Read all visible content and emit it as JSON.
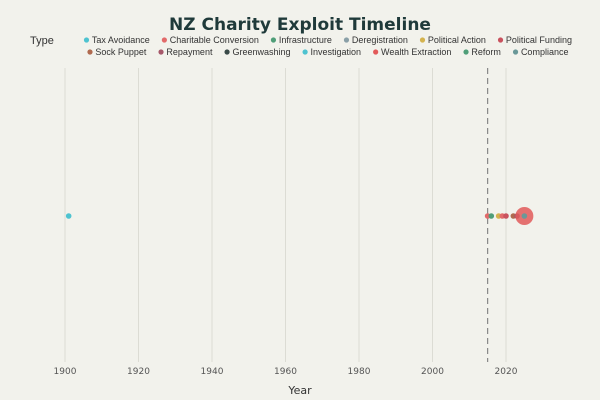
{
  "chart_data": {
    "type": "scatter",
    "title": "NZ Charity Exploit Timeline",
    "xlabel": "Year",
    "ylabel": "",
    "xlim": [
      1895,
      2030
    ],
    "xticks": [
      1900,
      1920,
      1940,
      1960,
      1980,
      2000,
      2020
    ],
    "grid": true,
    "legend_title": "Type",
    "legend_placement": "top",
    "reference_line": {
      "x": 2015,
      "style": "dashed"
    },
    "legend": [
      {
        "name": "Tax Avoidance",
        "color": "#4ec3d0"
      },
      {
        "name": "Charitable Conversion",
        "color": "#e26a6a"
      },
      {
        "name": "Infrastructure",
        "color": "#4f9e78"
      },
      {
        "name": "Deregistration",
        "color": "#8aa0a8"
      },
      {
        "name": "Political Action",
        "color": "#d4b34e"
      },
      {
        "name": "Political Funding",
        "color": "#c9525e"
      },
      {
        "name": "Sock Puppet",
        "color": "#b06a4f"
      },
      {
        "name": "Repayment",
        "color": "#a6586a"
      },
      {
        "name": "Greenwashing",
        "color": "#3a4a48"
      },
      {
        "name": "Investigation",
        "color": "#4ec3d0"
      },
      {
        "name": "Wealth Extraction",
        "color": "#e25a5a"
      },
      {
        "name": "Reform",
        "color": "#4f9e78"
      },
      {
        "name": "Compliance",
        "color": "#6a9898"
      }
    ],
    "points": [
      {
        "x": 1901,
        "type": "Tax Avoidance",
        "size": 1
      },
      {
        "x": 2015,
        "type": "Charitable Conversion",
        "size": 1
      },
      {
        "x": 2016,
        "type": "Infrastructure",
        "size": 1
      },
      {
        "x": 2018,
        "type": "Political Action",
        "size": 1
      },
      {
        "x": 2019,
        "type": "Charitable Conversion",
        "size": 1
      },
      {
        "x": 2020,
        "type": "Political Funding",
        "size": 1
      },
      {
        "x": 2022,
        "type": "Sock Puppet",
        "size": 1
      },
      {
        "x": 2023,
        "type": "Repayment",
        "size": 1
      },
      {
        "x": 2025,
        "type": "Wealth Extraction",
        "size": 5
      },
      {
        "x": 2025,
        "type": "Compliance",
        "size": 1
      }
    ]
  }
}
